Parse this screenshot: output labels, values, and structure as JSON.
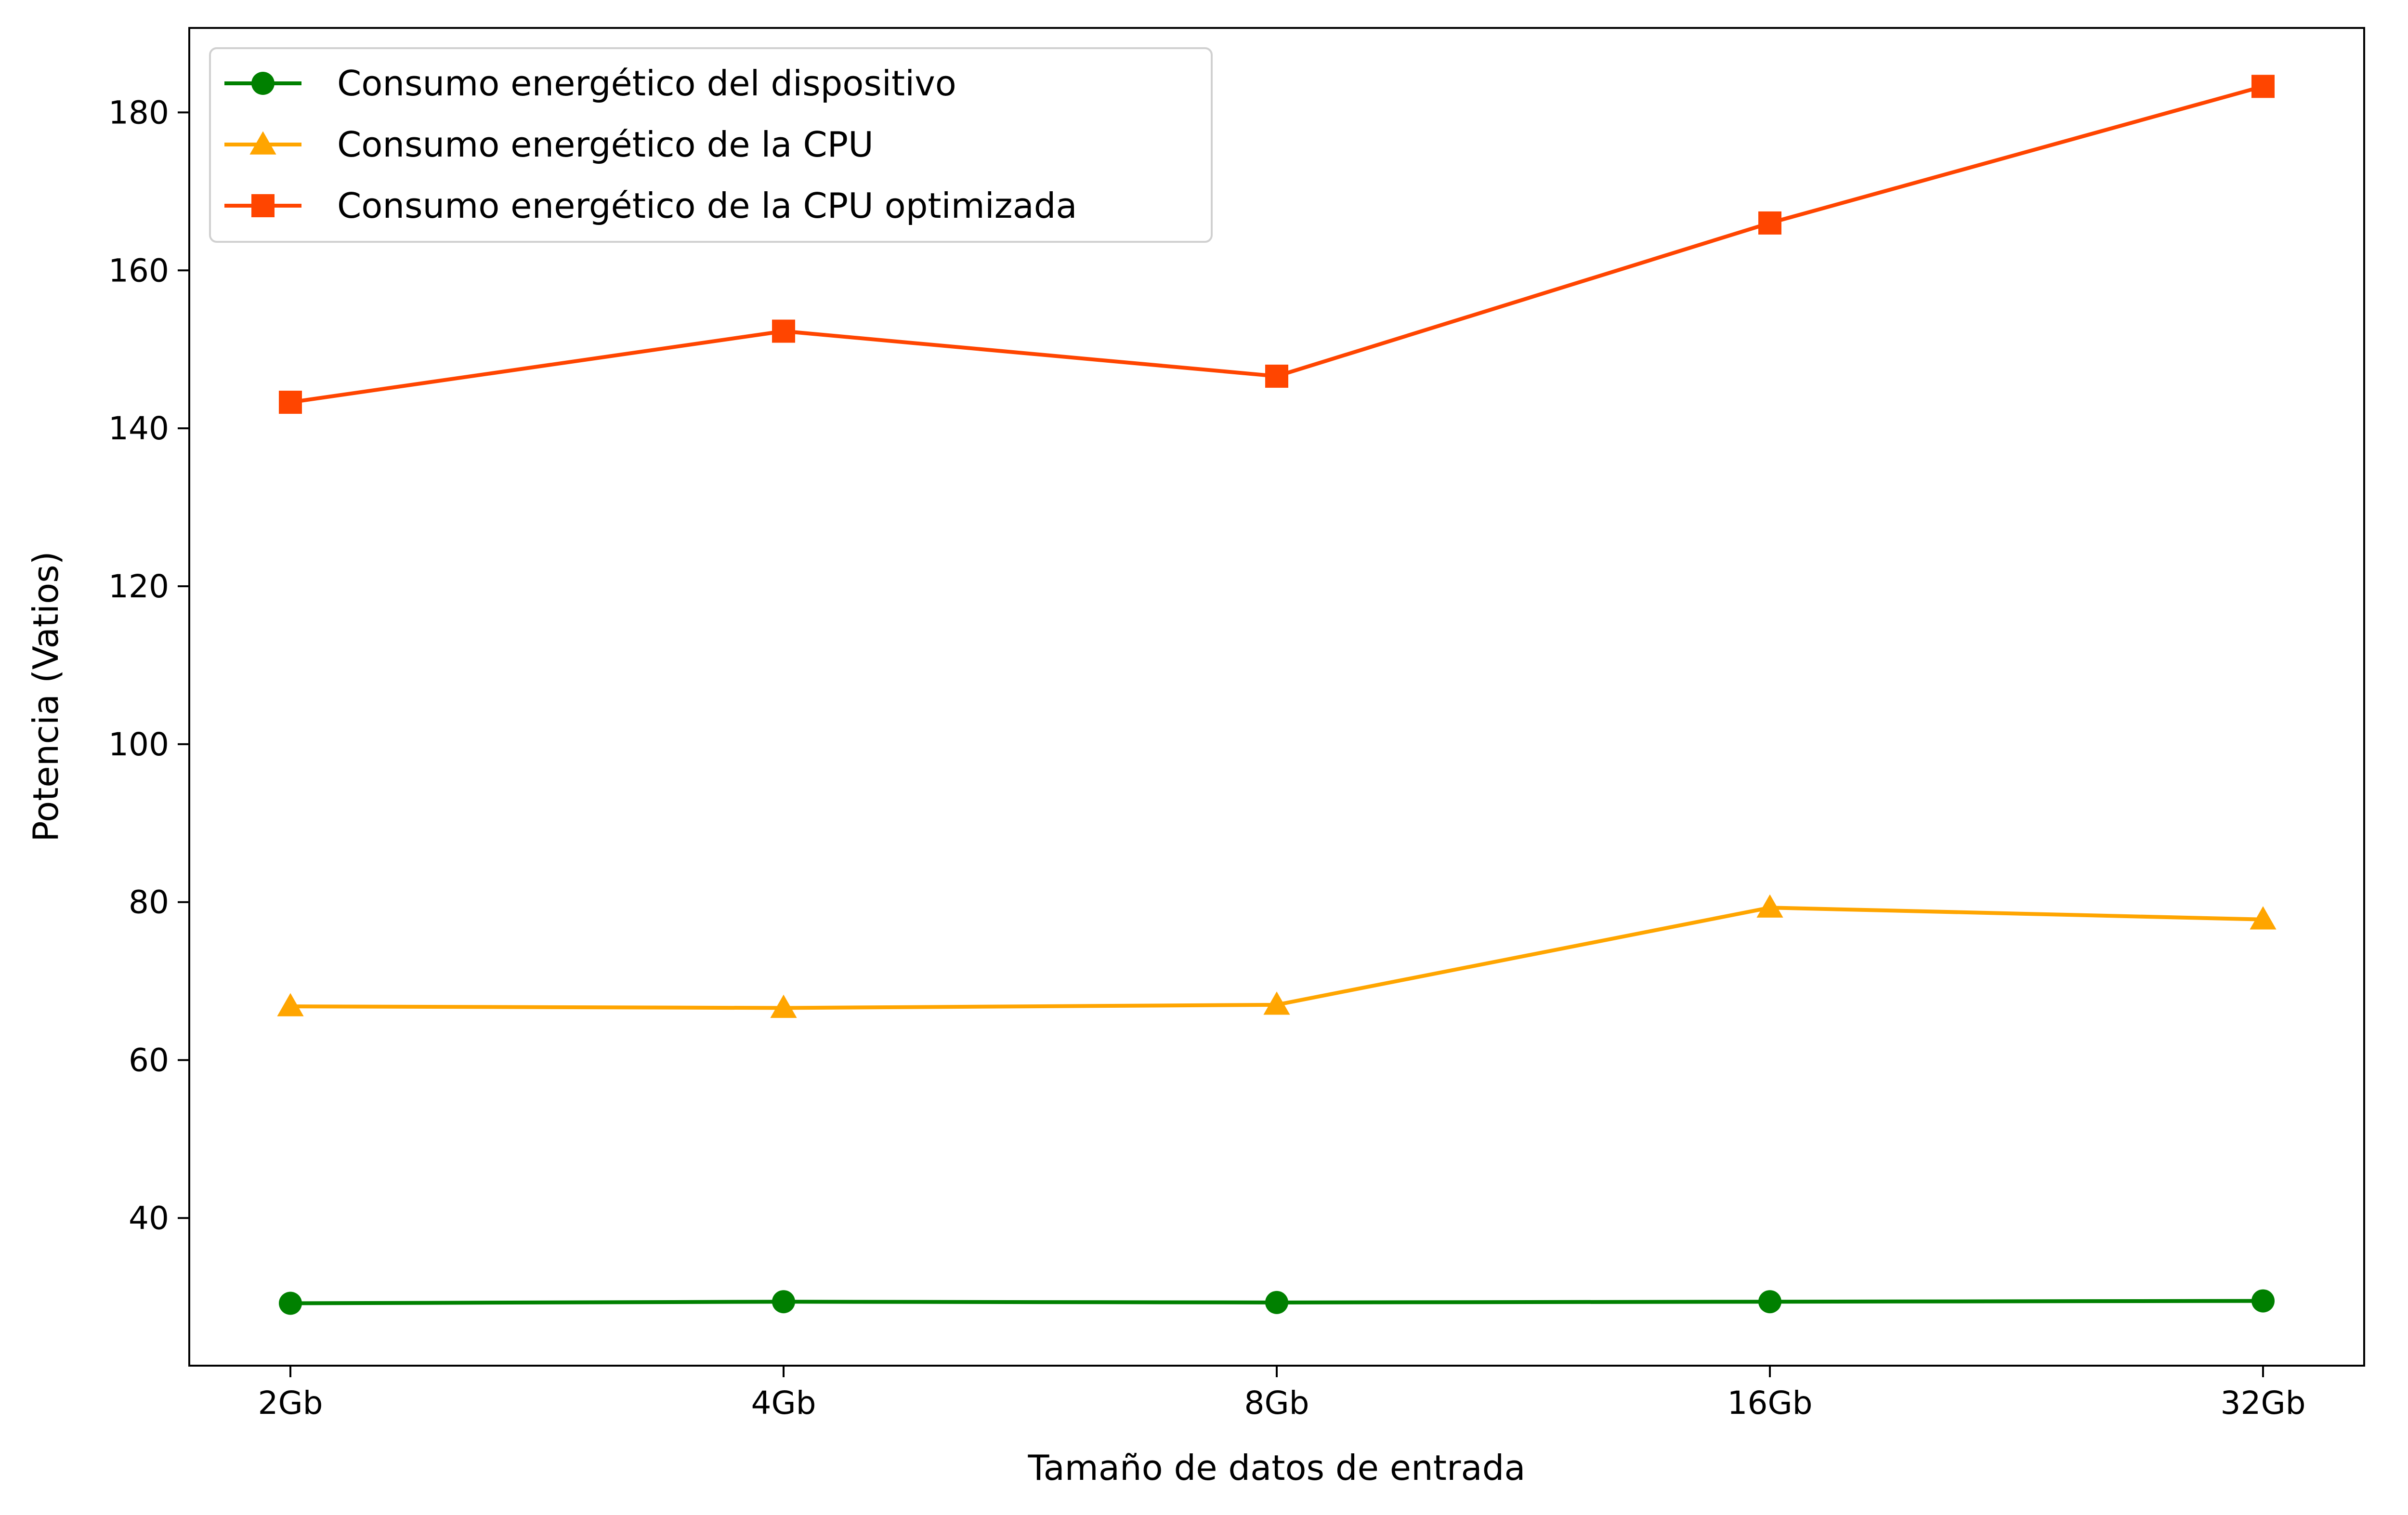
{
  "chart_data": {
    "type": "line",
    "title": "",
    "xlabel": "Tamaño de datos de entrada",
    "ylabel": "Potencia (Vatios)",
    "categories": [
      "2Gb",
      "4Gb",
      "8Gb",
      "16Gb",
      "32Gb"
    ],
    "ylim": [
      21.3,
      190.7
    ],
    "yticks": [
      40,
      60,
      80,
      100,
      120,
      140,
      160,
      180
    ],
    "grid": false,
    "legend": "top-left",
    "series": [
      {
        "name": "Consumo energético del dispositivo",
        "marker": "circle",
        "color": "#008000",
        "values": [
          29.2,
          29.4,
          29.3,
          29.4,
          29.5
        ]
      },
      {
        "name": "Consumo energético de la CPU",
        "marker": "triangle",
        "color": "#FFA500",
        "values": [
          66.8,
          66.6,
          67.0,
          79.3,
          77.8
        ]
      },
      {
        "name": "Consumo energético de la CPU optimizada",
        "marker": "square",
        "color": "#FF4500",
        "values": [
          143.3,
          152.3,
          146.6,
          166.0,
          183.3
        ]
      }
    ]
  }
}
